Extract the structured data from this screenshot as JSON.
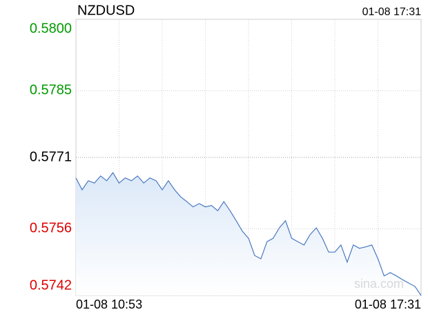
{
  "chart_data": {
    "type": "line",
    "title": "NZDUSD",
    "timestamp": "01-08 17:31",
    "watermark": "sina.com",
    "x_start_label": "01-08 10:53",
    "x_end_label": "01-08 17:31",
    "prev_close": 0.5771,
    "ylim": [
      0.5742,
      0.58
    ],
    "yticks": [
      {
        "value": 0.58,
        "label": "0.5800"
      },
      0.5785,
      0.5771,
      0.5756,
      0.5742
    ],
    "up_color": "#009900",
    "down_color": "#dd0000",
    "flat_color": "#000000",
    "grid": true,
    "series": [
      {
        "name": "NZDUSD",
        "color": "#4a78c0",
        "values": [
          0.57667,
          0.57642,
          0.57661,
          0.57656,
          0.57671,
          0.57661,
          0.57678,
          0.57656,
          0.57667,
          0.57661,
          0.57671,
          0.57656,
          0.57667,
          0.57661,
          0.57642,
          0.57661,
          0.57642,
          0.57627,
          0.57617,
          0.57606,
          0.57613,
          0.57606,
          0.57609,
          0.57598,
          0.57617,
          0.57598,
          0.57577,
          0.57555,
          0.5754,
          0.57504,
          0.57497,
          0.57533,
          0.5754,
          0.57562,
          0.57577,
          0.5754,
          0.57533,
          0.57526,
          0.57548,
          0.57562,
          0.5754,
          0.57511,
          0.57511,
          0.57526,
          0.5749,
          0.57526,
          0.57519,
          0.57522,
          0.57526,
          0.57497,
          0.57461,
          0.57468,
          0.57461,
          0.57453,
          0.57446,
          0.57439,
          0.5742
        ]
      }
    ]
  }
}
